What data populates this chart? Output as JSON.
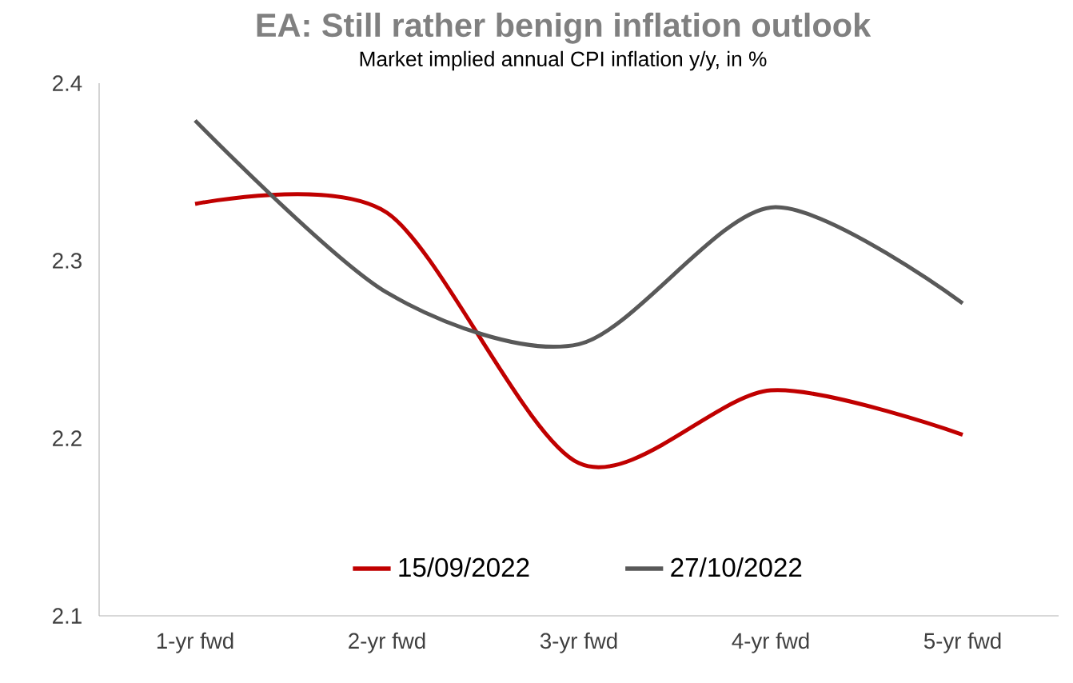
{
  "chart_data": {
    "type": "line",
    "title": "EA: Still rather benign inflation outlook",
    "subtitle": "Market implied annual  CPI inflation y/y, in %",
    "categories": [
      "1-yr fwd",
      "2-yr fwd",
      "3-yr fwd",
      "4-yr fwd",
      "5-yr fwd"
    ],
    "series": [
      {
        "name": "15/09/2022",
        "color": "#c00000",
        "values": [
          2.332,
          2.327,
          2.186,
          2.227,
          2.202
        ]
      },
      {
        "name": "27/10/2022",
        "color": "#595959",
        "values": [
          2.379,
          2.282,
          2.253,
          2.33,
          2.276
        ]
      }
    ],
    "ylim": [
      2.1,
      2.4
    ],
    "yticks": [
      2.1,
      2.2,
      2.3,
      2.4
    ],
    "legend": "bottom",
    "grid": false
  }
}
